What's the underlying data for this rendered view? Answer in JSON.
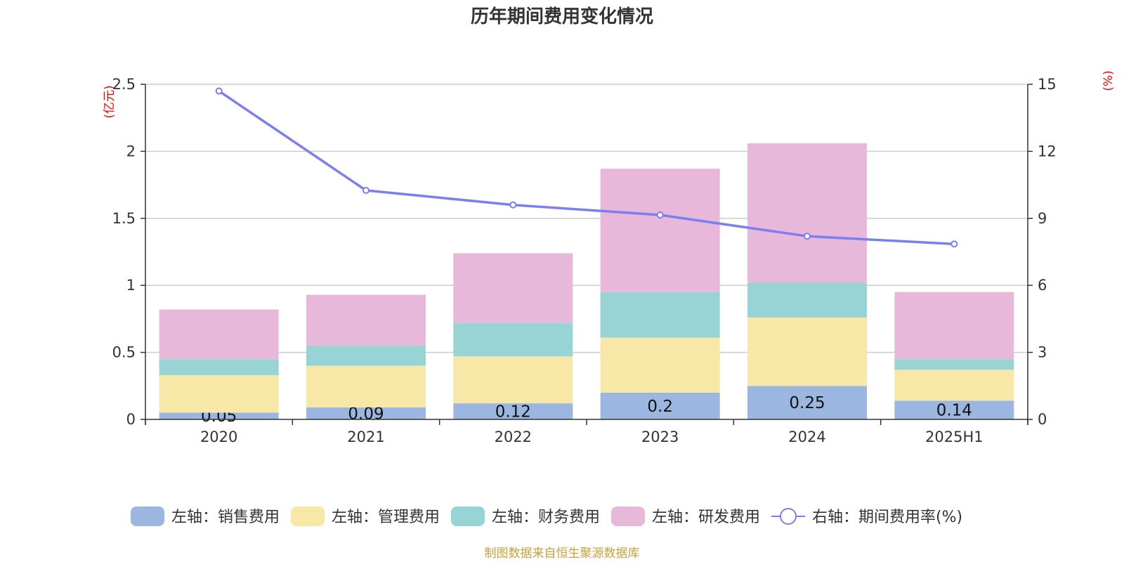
{
  "chart_data": {
    "type": "bar",
    "title": "历年期间费用变化情况",
    "left_unit": "(亿元)",
    "right_unit": "(%)",
    "categories": [
      "2020",
      "2021",
      "2022",
      "2023",
      "2024",
      "2025H1"
    ],
    "left_axis": {
      "min": 0,
      "max": 2.5,
      "ticks": [
        "0",
        "0.5",
        "1",
        "1.5",
        "2",
        "2.5"
      ]
    },
    "right_axis": {
      "min": 0,
      "max": 15,
      "ticks": [
        "0",
        "3",
        "6",
        "9",
        "12",
        "15"
      ]
    },
    "grid": true,
    "legend_position": "bottom",
    "series": [
      {
        "name": "左轴：销售费用",
        "axis": "left",
        "kind": "bar",
        "color": "#9bb6e0",
        "values": [
          0.05,
          0.09,
          0.12,
          0.2,
          0.25,
          0.14
        ],
        "labels": [
          "0.05",
          "0.09",
          "0.12",
          "0.2",
          "0.25",
          "0.14"
        ]
      },
      {
        "name": "左轴：管理费用",
        "axis": "left",
        "kind": "bar",
        "color": "#f8e8a8",
        "values": [
          0.28,
          0.31,
          0.35,
          0.41,
          0.51,
          0.23
        ]
      },
      {
        "name": "左轴：财务费用",
        "axis": "left",
        "kind": "bar",
        "color": "#98d4d6",
        "values": [
          0.12,
          0.15,
          0.25,
          0.34,
          0.26,
          0.08
        ]
      },
      {
        "name": "左轴：研发费用",
        "axis": "left",
        "kind": "bar",
        "color": "#e7b8d9",
        "values": [
          0.37,
          0.38,
          0.52,
          0.92,
          1.04,
          0.5
        ]
      },
      {
        "name": "右轴：期间费用率(%)",
        "axis": "right",
        "kind": "line",
        "color": "#7b7ff0",
        "values": [
          14.7,
          10.25,
          9.6,
          9.15,
          8.2,
          7.85
        ]
      }
    ]
  },
  "source_note": "制图数据来自恒生聚源数据库"
}
